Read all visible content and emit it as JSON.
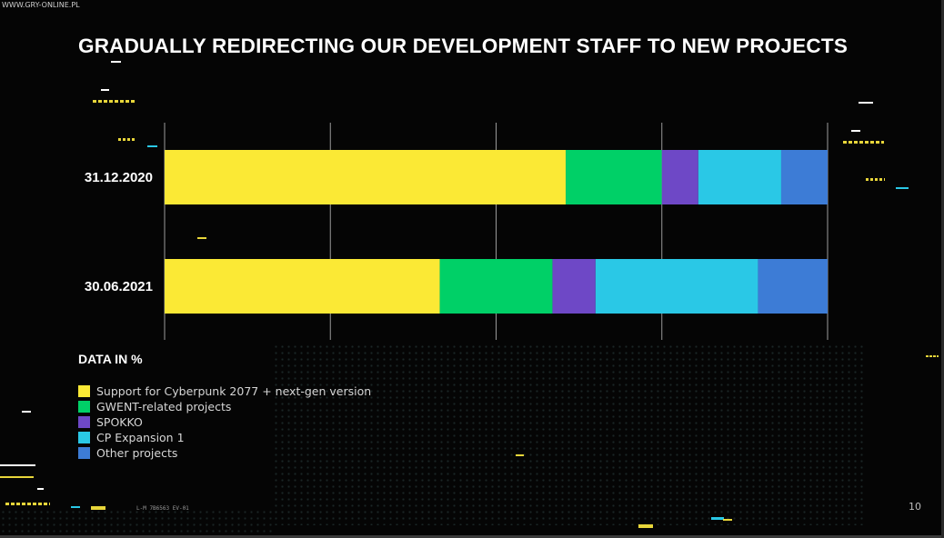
{
  "watermark": "WWW.GRY-ONLINE.PL",
  "title": "GRADUALLY REDIRECTING OUR DEVELOPMENT STAFF TO NEW PROJECTS",
  "legend_title": "DATA IN %",
  "page_number": "10",
  "code_text": "L-M 7B6563 EV-01",
  "colors": {
    "cyberpunk": "#fbe935",
    "gwent": "#00d067",
    "spokko": "#6e48c6",
    "cp_expansion": "#2ac8e6",
    "other": "#3d7cd6"
  },
  "chart_data": {
    "type": "bar",
    "orientation": "horizontal",
    "stacked": true,
    "categories": [
      "31.12.2020",
      "30.06.2021"
    ],
    "series": [
      {
        "name": "Support for Cyberpunk 2077 + next-gen version",
        "color": "#fbe935",
        "values": [
          60.5,
          41.5
        ]
      },
      {
        "name": "GWENT-related projects",
        "color": "#00d067",
        "values": [
          14.5,
          17
        ]
      },
      {
        "name": "SPOKKO",
        "color": "#6e48c6",
        "values": [
          5.5,
          6.5
        ]
      },
      {
        "name": "CP Expansion 1",
        "color": "#2ac8e6",
        "values": [
          12.5,
          24.5
        ]
      },
      {
        "name": "Other projects",
        "color": "#3d7cd6",
        "values": [
          7,
          10.5
        ]
      }
    ],
    "xlim": [
      0,
      100
    ],
    "grid": true,
    "legend_position": "bottom-left"
  }
}
